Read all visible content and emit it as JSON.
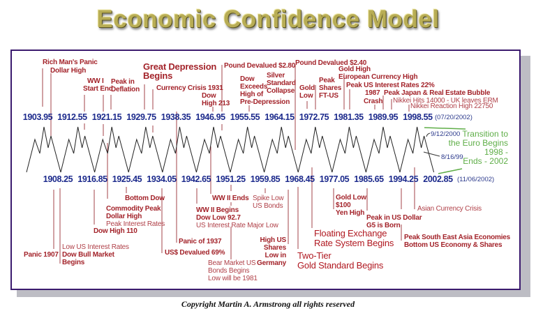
{
  "title": "Economic Confidence Model",
  "copyright": "Copyright Martin A. Armstrong all rights reserved",
  "peaks": [
    "1903.95",
    "1912.55",
    "1921.15",
    "1929.75",
    "1938.35",
    "1946.95",
    "1955.55",
    "1964.15",
    "1972.75",
    "1981.35",
    "1989.95",
    "1998.55"
  ],
  "troughs": [
    "1908.25",
    "1916.85",
    "1925.45",
    "1934.05",
    "1942.65",
    "1951.25",
    "1959.85",
    "1968.45",
    "1977.05",
    "1985.65",
    "1994.25",
    "2002.85"
  ],
  "peak_date_note": "(07/20/2002)",
  "trough_date_note": "(11/06/2002)",
  "colors": {
    "years": "#1c2a8c",
    "events": "#a3232a",
    "euro": "#5fae48",
    "frame": "#3b1a6e",
    "title": "#b8ad55"
  },
  "euro": {
    "line1": "Transition to",
    "line2": "the Euro Begins",
    "line3": "1998 -",
    "line4": "Ends - 2002",
    "date_high": "9/12/2000",
    "date_low": "8/16/99"
  },
  "events_top": {
    "rich_mans_panic": "Rich Man's Panic",
    "dollar_high": "Dollar High",
    "ww1": "WW I",
    "start_end": "Start End",
    "peak_in": "Peak in",
    "deflation": "Deflation",
    "great_depression": "Great Depression",
    "begins": "Begins",
    "currency_crisis": "Currency Crisis 1931",
    "dow": "Dow",
    "high_213": "High 213",
    "pound_280": "Pound Devalued $2.80",
    "dow_exceeds_1": "Dow",
    "dow_exceeds_2": "Exceeds",
    "dow_exceeds_3": "High of",
    "dow_exceeds_4": "Pre-Depression",
    "silver_1": "Silver",
    "silver_2": "Standard",
    "silver_3": "Collapse",
    "pound_240": "Pound Devalued $2.40",
    "gold_1": "Gold",
    "gold_2": "Low",
    "peak_shares_1": "Peak",
    "peak_shares_2": "Shares",
    "peak_shares_3": "FT-US",
    "gold_high": "Gold High",
    "euro_high": "European Currency High",
    "us_rates_22": "Peak US Interest Rates 22%",
    "crash_1": "1987",
    "crash_2": "Crash",
    "japan_bubble": "Peak Japan & Real Estate Bubble",
    "nikkei_14000": "Nikkei Hits 14000 - UK leaves ERM",
    "nikkei_22750": "Nikkei Reaction High 22750"
  },
  "events_bottom": {
    "panic_1907": "Panic 1907",
    "low_us_rates": "Low US Interest Rates",
    "dow_bull_1": "Dow Bull Market",
    "dow_bull_2": "Begins",
    "dow_high_110": "Dow High 110",
    "commodity_peak": "Commodity Peak",
    "dollar_high": "Dollar High",
    "peak_rates": "Peak Interest Rates",
    "bottom_dow": "Bottom Dow",
    "us_devalued": "US$ Devalued 69%",
    "panic_1937": "Panic of 1937",
    "ww2_begins": "WW II Begins",
    "dow_low_927": "Dow Low 92.7",
    "rate_major_low": "US Interest Rate Major Low",
    "ww2_ends": "WW II Ends",
    "bear_1": "Bear Market US",
    "bear_2": "Bonds Begins",
    "bear_3": "Low will be 1981",
    "spike_1": "Spike Low",
    "spike_2": "US Bonds",
    "high_us_1": "High US",
    "high_us_2": "Shares",
    "high_us_3": "Low in",
    "high_us_4": "Germany",
    "two_tier_1": "Two-Tier",
    "two_tier_2": "Gold Standard Begins",
    "floating_1": "Floating Exchange",
    "floating_2": "Rate System Begins",
    "gold_low_1": "Gold Low",
    "gold_low_2": "$100",
    "gold_low_3": "Yen High",
    "peak_usd_1": "Peak in US Dollar",
    "peak_usd_2": "G5 is Born",
    "asian_crisis": "Asian Currency Crisis",
    "sea_1": "Peak South East Asia Economies",
    "sea_2": "Bottom US Economy & Shares"
  }
}
